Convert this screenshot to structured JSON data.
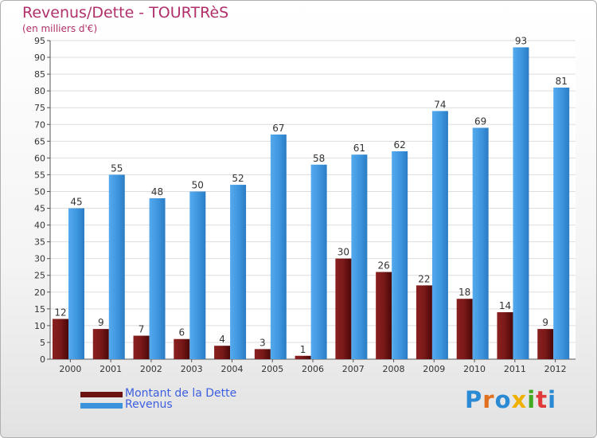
{
  "title": "Revenus/Dette - TOURTRèS",
  "subtitle": "(en milliers d'€)",
  "logo": {
    "text": "Proxiti",
    "colors": [
      "#2a8ad4",
      "#e07020",
      "#2a8ad4",
      "#f0b000",
      "#44aa22",
      "#e03a3a",
      "#2a8ad4"
    ]
  },
  "colors": {
    "dette": "#6b1212",
    "revenus": "#3b93db",
    "title": "#b0306a",
    "legend_text": "#3d5ee0"
  },
  "chart_data": {
    "type": "bar",
    "categories": [
      "2000",
      "2001",
      "2002",
      "2003",
      "2004",
      "2005",
      "2006",
      "2007",
      "2008",
      "2009",
      "2010",
      "2011",
      "2012"
    ],
    "series": [
      {
        "name": "Montant de la Dette",
        "values": [
          12,
          9,
          7,
          6,
          4,
          3,
          1,
          30,
          26,
          22,
          18,
          14,
          9
        ]
      },
      {
        "name": "Revenus",
        "values": [
          45,
          55,
          48,
          50,
          52,
          67,
          58,
          61,
          62,
          74,
          69,
          93,
          81
        ]
      }
    ],
    "yticks": [
      0,
      5,
      10,
      15,
      20,
      25,
      30,
      35,
      40,
      45,
      50,
      55,
      60,
      65,
      70,
      75,
      80,
      85,
      90,
      95
    ],
    "ylim": [
      0,
      95
    ],
    "grid": true,
    "legend_position": "bottom-left"
  }
}
